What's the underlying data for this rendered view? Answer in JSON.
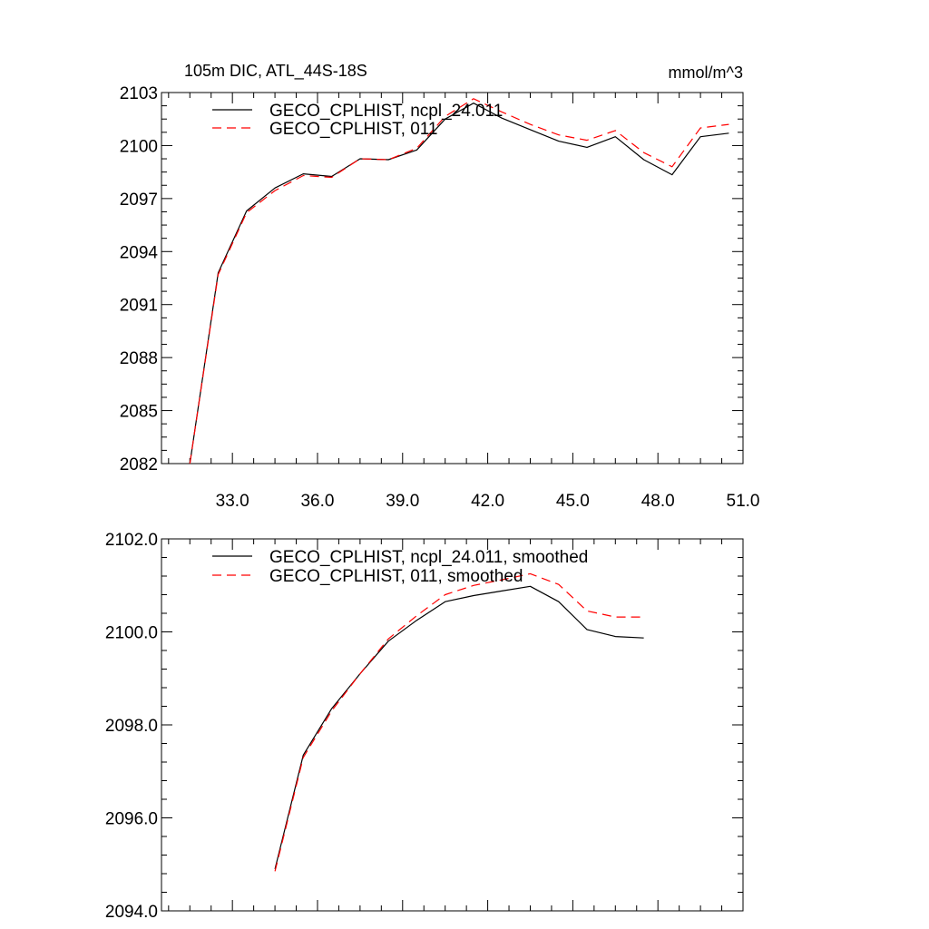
{
  "chart_data": [
    {
      "type": "line",
      "title": "105m DIC, ATL_44S-18S",
      "units": "mmol/m^3",
      "xlim": [
        30.5,
        51.0
      ],
      "ylim": [
        2082,
        2103
      ],
      "x_ticks": [
        33.0,
        36.0,
        39.0,
        42.0,
        45.0,
        48.0,
        51.0
      ],
      "x_tick_labels": [
        "33.0",
        "36.0",
        "39.0",
        "42.0",
        "45.0",
        "48.0",
        "51.0"
      ],
      "y_ticks": [
        2082,
        2085,
        2088,
        2091,
        2094,
        2097,
        2100,
        2103
      ],
      "y_tick_labels": [
        "2082",
        "2085",
        "2088",
        "2091",
        "2094",
        "2097",
        "2100",
        "2103"
      ],
      "legend_position": "top-left",
      "series": [
        {
          "name": "GECO_CPLHIST, ncpl_24.011",
          "color": "#000000",
          "dash": "solid",
          "x": [
            31.5,
            32.5,
            33.5,
            34.5,
            35.5,
            36.5,
            37.5,
            38.5,
            39.5,
            40.5,
            41.5,
            42.5,
            43.5,
            44.5,
            45.5,
            46.5,
            47.5,
            48.5,
            49.5,
            50.5
          ],
          "y": [
            2082.0,
            2092.8,
            2096.3,
            2097.6,
            2098.4,
            2098.25,
            2099.25,
            2099.2,
            2099.75,
            2101.5,
            2102.4,
            2101.55,
            2100.9,
            2100.25,
            2099.9,
            2100.5,
            2099.2,
            2098.35,
            2100.5,
            2100.7
          ]
        },
        {
          "name": "GECO_CPLHIST, 011",
          "color": "#ff0000",
          "dash": "dashed",
          "x": [
            31.5,
            32.5,
            33.5,
            34.5,
            35.5,
            36.5,
            37.5,
            38.5,
            39.5,
            40.5,
            41.5,
            42.5,
            43.5,
            44.5,
            45.5,
            46.5,
            47.5,
            48.5,
            49.5,
            50.5
          ],
          "y": [
            2082.0,
            2092.7,
            2096.2,
            2097.45,
            2098.3,
            2098.2,
            2099.25,
            2099.2,
            2099.85,
            2101.65,
            2102.65,
            2101.9,
            2101.2,
            2100.6,
            2100.3,
            2100.85,
            2099.6,
            2098.8,
            2101.0,
            2101.2
          ]
        }
      ]
    },
    {
      "type": "line",
      "xlim": [
        30.5,
        51.0
      ],
      "ylim": [
        2094.0,
        2102.0
      ],
      "x_ticks": [
        33.0,
        36.0,
        39.0,
        42.0,
        45.0,
        48.0,
        51.0
      ],
      "y_ticks": [
        2094.0,
        2096.0,
        2098.0,
        2100.0,
        2102.0
      ],
      "y_tick_labels": [
        "2094.0",
        "2096.0",
        "2098.0",
        "2100.0",
        "2102.0"
      ],
      "legend_position": "top-left",
      "series": [
        {
          "name": "GECO_CPLHIST, ncpl_24.011, smoothed",
          "color": "#000000",
          "dash": "solid",
          "x": [
            34.5,
            35.5,
            36.5,
            37.5,
            38.5,
            39.5,
            40.5,
            41.5,
            42.5,
            43.5,
            44.5,
            45.5,
            46.5,
            47.5
          ],
          "y": [
            2094.9,
            2097.35,
            2098.35,
            2099.1,
            2099.8,
            2100.25,
            2100.65,
            2100.78,
            2100.88,
            2100.98,
            2100.65,
            2100.05,
            2099.9,
            2099.87
          ]
        },
        {
          "name": "GECO_CPLHIST, 011, smoothed",
          "color": "#ff0000",
          "dash": "dashed",
          "x": [
            34.5,
            35.5,
            36.5,
            37.5,
            38.5,
            39.5,
            40.5,
            41.5,
            42.5,
            43.5,
            44.5,
            45.5,
            46.5,
            47.5
          ],
          "y": [
            2094.85,
            2097.3,
            2098.3,
            2099.1,
            2099.85,
            2100.35,
            2100.8,
            2101.0,
            2101.12,
            2101.25,
            2101.02,
            2100.45,
            2100.32,
            2100.32
          ]
        }
      ]
    }
  ]
}
